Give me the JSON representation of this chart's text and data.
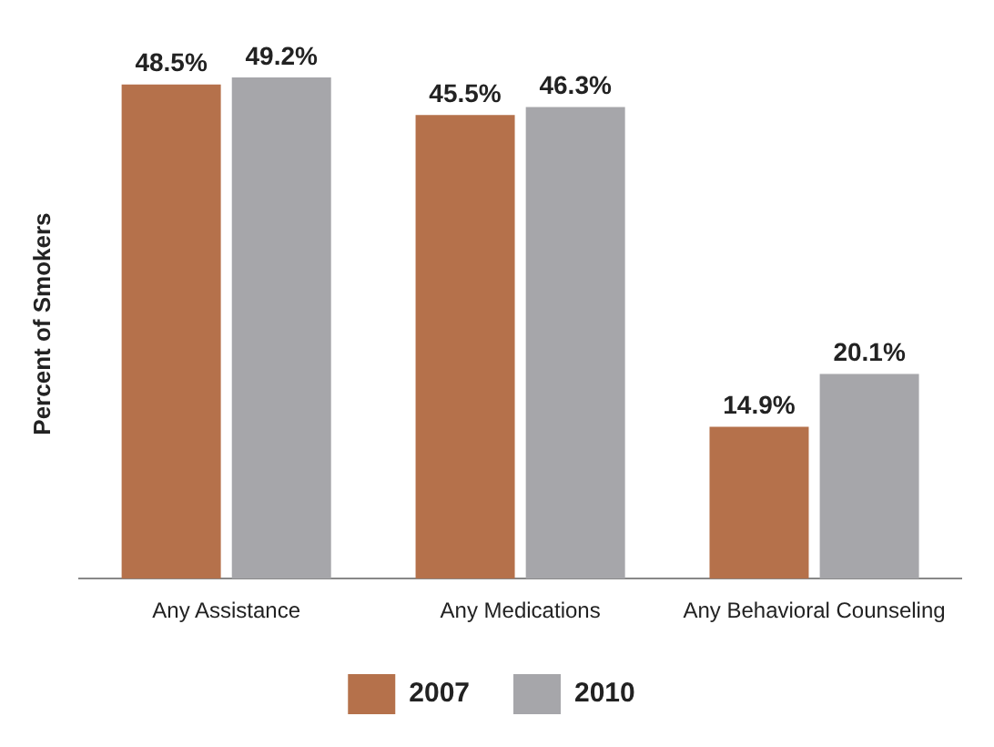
{
  "chart_data": {
    "type": "bar",
    "ylabel": "Percent of Smokers",
    "categories": [
      "Any Assistance",
      "Any Medications",
      "Any Behavioral Counseling"
    ],
    "series": [
      {
        "name": "2007",
        "color": "#b5714b",
        "values": [
          48.5,
          45.5,
          14.9
        ],
        "value_labels": [
          "48.5%",
          "45.5%",
          "14.9%"
        ]
      },
      {
        "name": "2010",
        "color": "#a6a6aa",
        "values": [
          49.2,
          46.3,
          20.1
        ],
        "value_labels": [
          "49.2%",
          "46.3%",
          "20.1%"
        ]
      }
    ],
    "legend": "bottom",
    "grid": false
  }
}
